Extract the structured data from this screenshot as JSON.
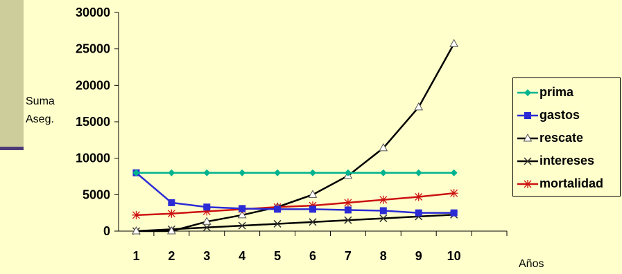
{
  "chart_data": {
    "type": "line",
    "title": "",
    "xlabel": "Años",
    "ylabel": [
      "Suma",
      "Aseg."
    ],
    "x": [
      1,
      2,
      3,
      4,
      5,
      6,
      7,
      8,
      9,
      10
    ],
    "ylim": [
      0,
      30000
    ],
    "yticks": [
      0,
      5000,
      10000,
      15000,
      20000,
      25000,
      30000
    ],
    "ytick_labels": [
      "0",
      "5000",
      "10000",
      "15000",
      "20000",
      "25000",
      "30000"
    ],
    "xtick_labels": [
      "1",
      "2",
      "3",
      "4",
      "5",
      "6",
      "7",
      "8",
      "9",
      "10"
    ],
    "grid": false,
    "legend_position": "right",
    "series": [
      {
        "name": "prima",
        "color": "#00b38f",
        "marker": "diamond",
        "values": [
          8000,
          8000,
          8000,
          8000,
          8000,
          8000,
          8000,
          8000,
          8000,
          8000
        ]
      },
      {
        "name": "gastos",
        "color": "#2b2bd6",
        "marker": "square",
        "values": [
          8000,
          3900,
          3300,
          3100,
          3000,
          3000,
          2900,
          2800,
          2500,
          2500
        ]
      },
      {
        "name": "rescate",
        "color": "#000000",
        "marker": "triangle",
        "values": [
          0,
          0,
          1300,
          2200,
          3300,
          5000,
          7600,
          11400,
          17000,
          25700
        ]
      },
      {
        "name": "intereses",
        "color": "#000000",
        "marker": "x",
        "values": [
          0,
          250,
          500,
          750,
          1000,
          1250,
          1500,
          1750,
          2000,
          2250
        ]
      },
      {
        "name": "mortalidad",
        "color": "#cc1111",
        "marker": "star",
        "values": [
          2200,
          2400,
          2700,
          3000,
          3300,
          3500,
          3900,
          4300,
          4700,
          5200
        ]
      }
    ]
  }
}
